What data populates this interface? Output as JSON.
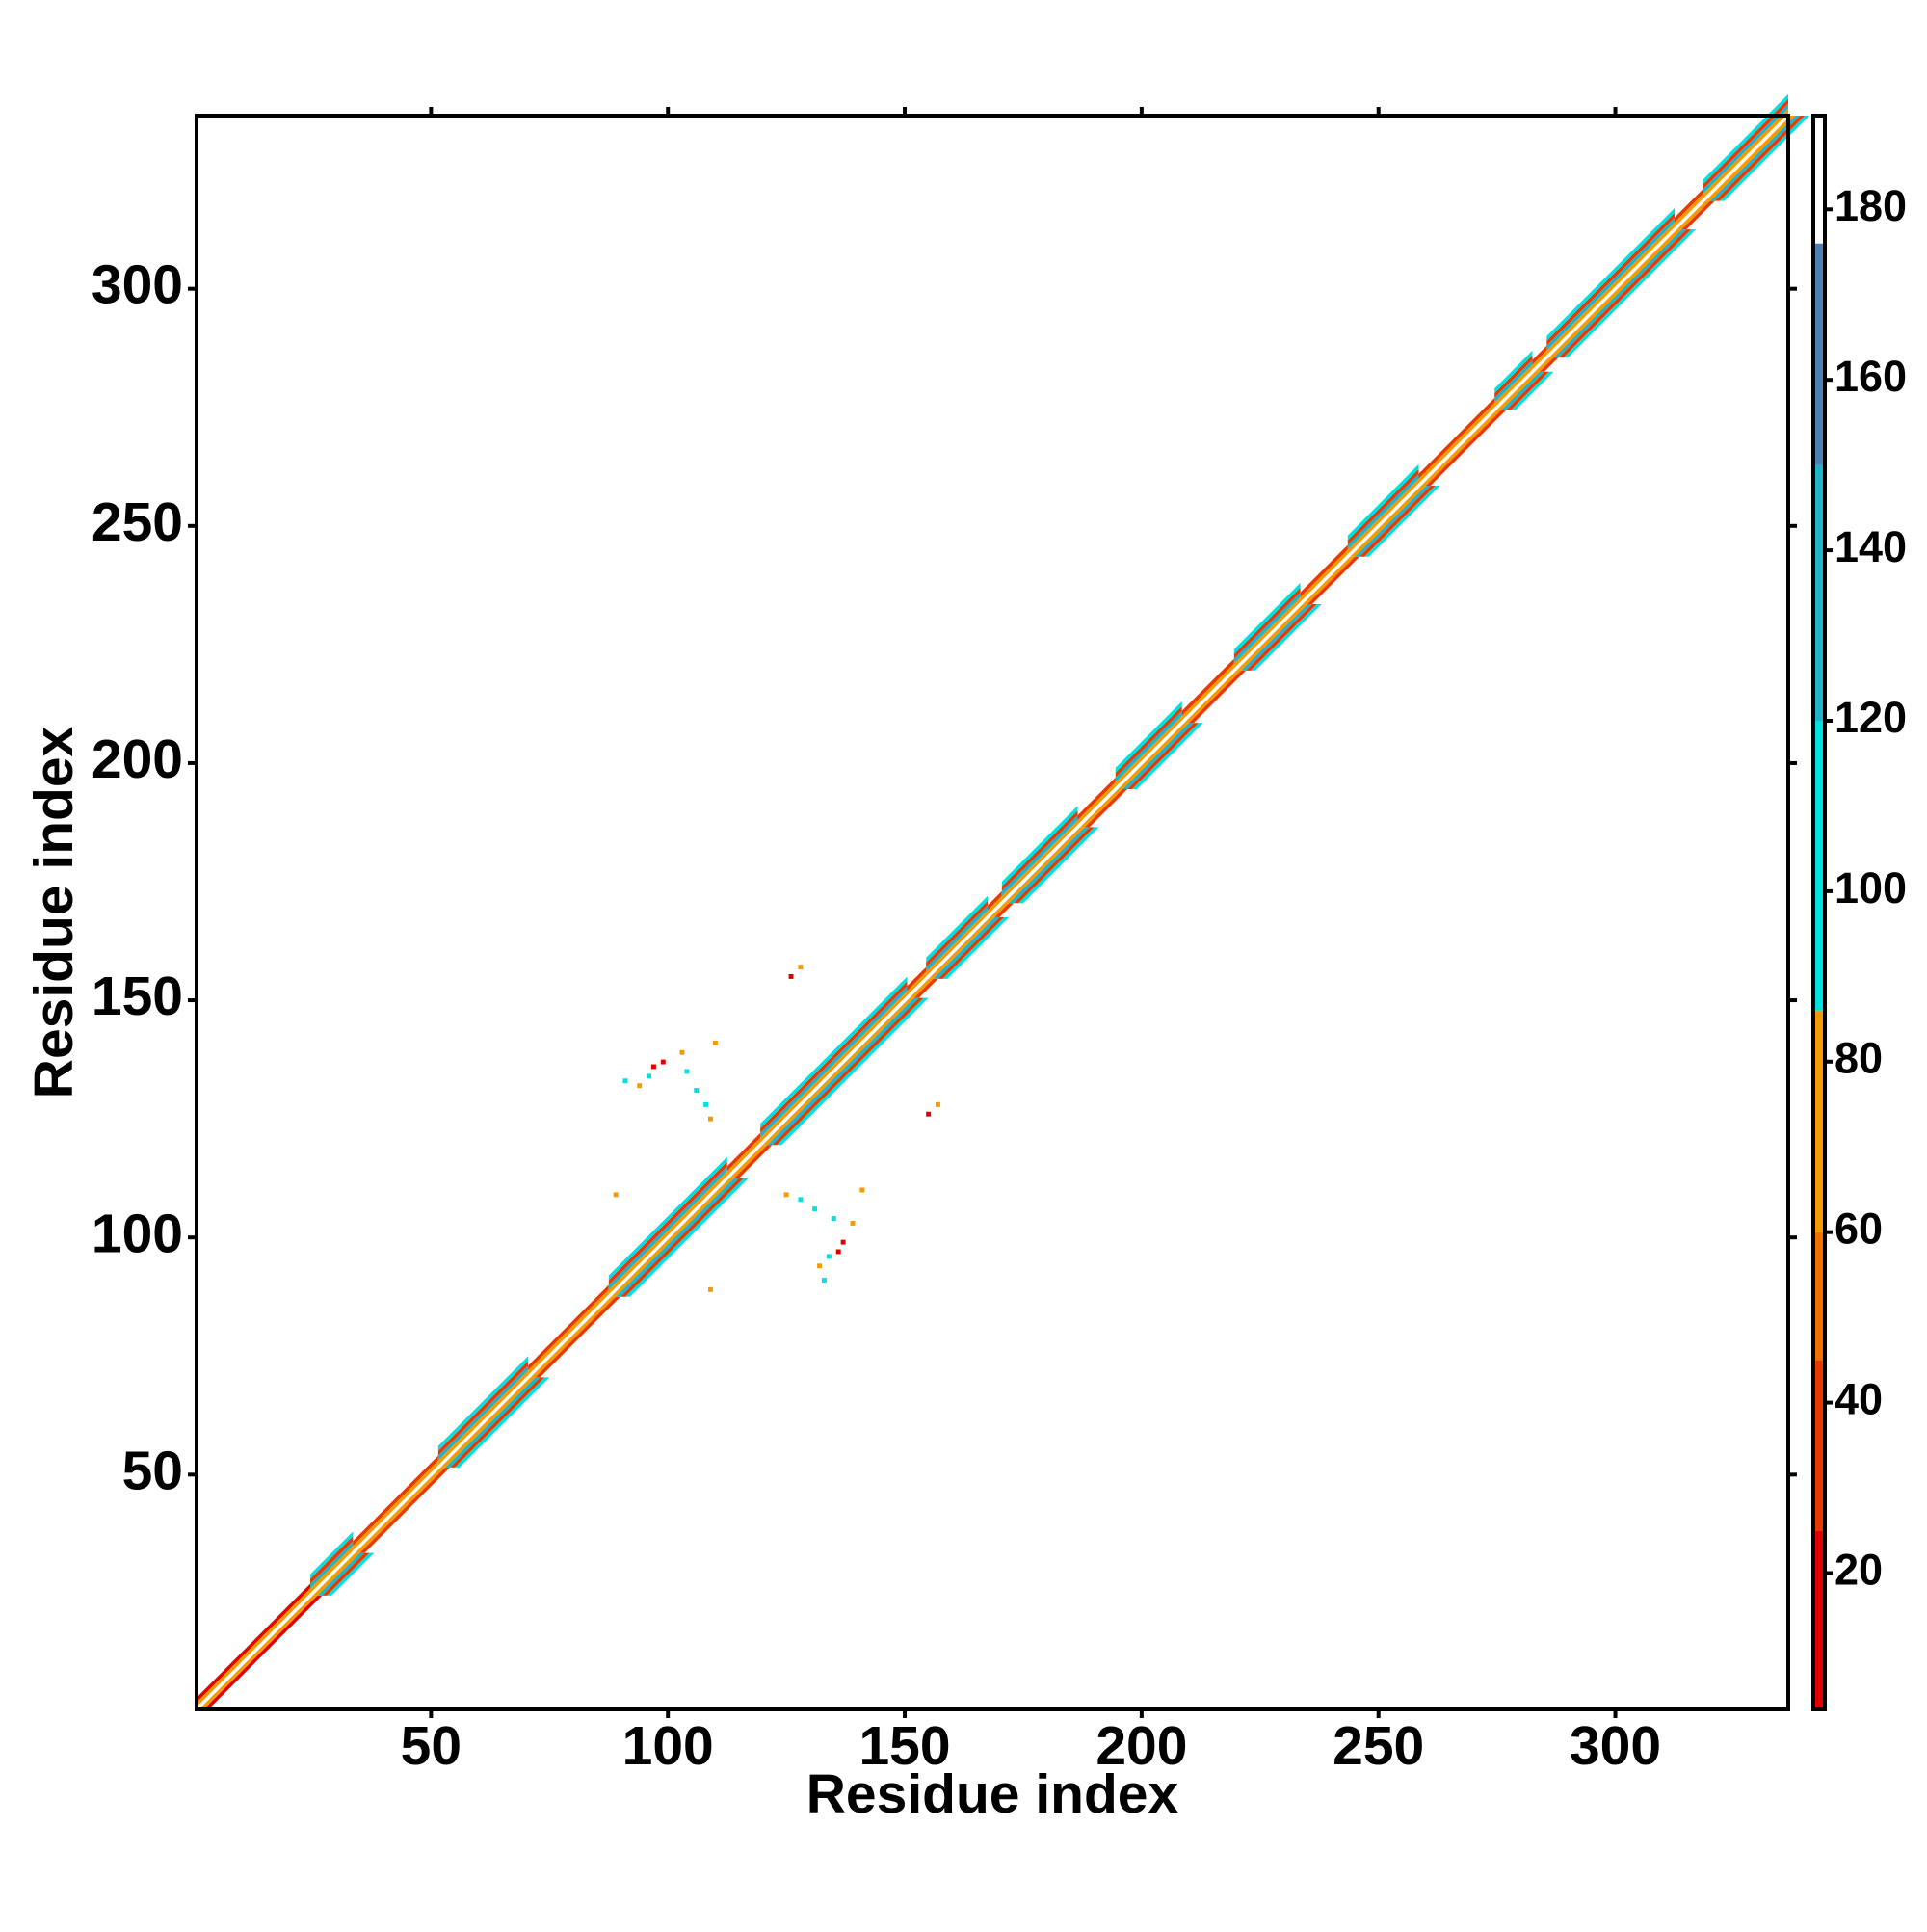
{
  "chart_data": {
    "type": "contact-map",
    "x_label": "Residue index",
    "y_label": "Residue index",
    "xlim": [
      0.5,
      336.5
    ],
    "ylim": [
      0.5,
      336.5
    ],
    "xticks": [
      50,
      100,
      150,
      200,
      250,
      300
    ],
    "yticks": [
      50,
      100,
      150,
      200,
      250,
      300
    ],
    "clim": [
      4,
      191
    ],
    "cticks": [
      20,
      40,
      60,
      80,
      100,
      120,
      140,
      160,
      180
    ],
    "colorscale": [
      {
        "value": 4,
        "color": "#e00000"
      },
      {
        "value": 25,
        "color": "#e83a00"
      },
      {
        "value": 45,
        "color": "#f07000"
      },
      {
        "value": 60,
        "color": "#f59a00"
      },
      {
        "value": 86,
        "color": "#00e0e0"
      },
      {
        "value": 120,
        "color": "#20b4cc"
      },
      {
        "value": 150,
        "color": "#4a7fb8"
      },
      {
        "value": 176,
        "color": "#ffffff"
      }
    ],
    "regions": [
      {
        "from": 1,
        "to": 24,
        "values": [
          70,
          20
        ]
      },
      {
        "from": 25,
        "to": 33,
        "values": [
          75,
          140,
          30,
          100
        ]
      },
      {
        "from": 34,
        "to": 51,
        "values": [
          70,
          25
        ]
      },
      {
        "from": 52,
        "to": 70,
        "values": [
          75,
          140,
          30,
          100
        ]
      },
      {
        "from": 71,
        "to": 87,
        "values": [
          70,
          25
        ]
      },
      {
        "from": 88,
        "to": 112,
        "values": [
          75,
          140,
          30,
          100
        ]
      },
      {
        "from": 113,
        "to": 119,
        "values": [
          70,
          25
        ]
      },
      {
        "from": 120,
        "to": 150,
        "values": [
          75,
          140,
          30,
          100
        ]
      },
      {
        "from": 151,
        "to": 154,
        "values": [
          70,
          25
        ]
      },
      {
        "from": 155,
        "to": 167,
        "values": [
          75,
          140,
          30,
          100
        ]
      },
      {
        "from": 168,
        "to": 170,
        "values": [
          70,
          25
        ]
      },
      {
        "from": 171,
        "to": 186,
        "values": [
          75,
          140,
          30,
          100
        ]
      },
      {
        "from": 187,
        "to": 194,
        "values": [
          70,
          25
        ]
      },
      {
        "from": 195,
        "to": 208,
        "values": [
          75,
          140,
          30,
          100
        ]
      },
      {
        "from": 209,
        "to": 219,
        "values": [
          70,
          25
        ]
      },
      {
        "from": 220,
        "to": 233,
        "values": [
          75,
          140,
          30,
          100
        ]
      },
      {
        "from": 234,
        "to": 243,
        "values": [
          70,
          25
        ]
      },
      {
        "from": 244,
        "to": 258,
        "values": [
          75,
          140,
          30,
          100
        ]
      },
      {
        "from": 259,
        "to": 274,
        "values": [
          70,
          25
        ]
      },
      {
        "from": 275,
        "to": 282,
        "values": [
          75,
          140,
          30,
          100
        ]
      },
      {
        "from": 283,
        "to": 285,
        "values": [
          70,
          25
        ]
      },
      {
        "from": 286,
        "to": 312,
        "values": [
          75,
          140,
          30,
          100
        ]
      },
      {
        "from": 313,
        "to": 318,
        "values": [
          70,
          25
        ]
      },
      {
        "from": 319,
        "to": 336,
        "values": [
          75,
          140,
          30,
          100
        ]
      }
    ],
    "contacts": {
      "x": [
        91,
        94,
        96,
        97,
        99,
        103,
        104,
        106,
        108,
        109,
        126,
        128,
        89,
        110
      ],
      "y": [
        133,
        132,
        134,
        136,
        137,
        139,
        135,
        131,
        128,
        125,
        155,
        157,
        109,
        141
      ],
      "values": [
        100,
        70,
        100,
        20,
        15,
        70,
        100,
        100,
        100,
        70,
        20,
        70,
        70,
        70
      ]
    }
  }
}
